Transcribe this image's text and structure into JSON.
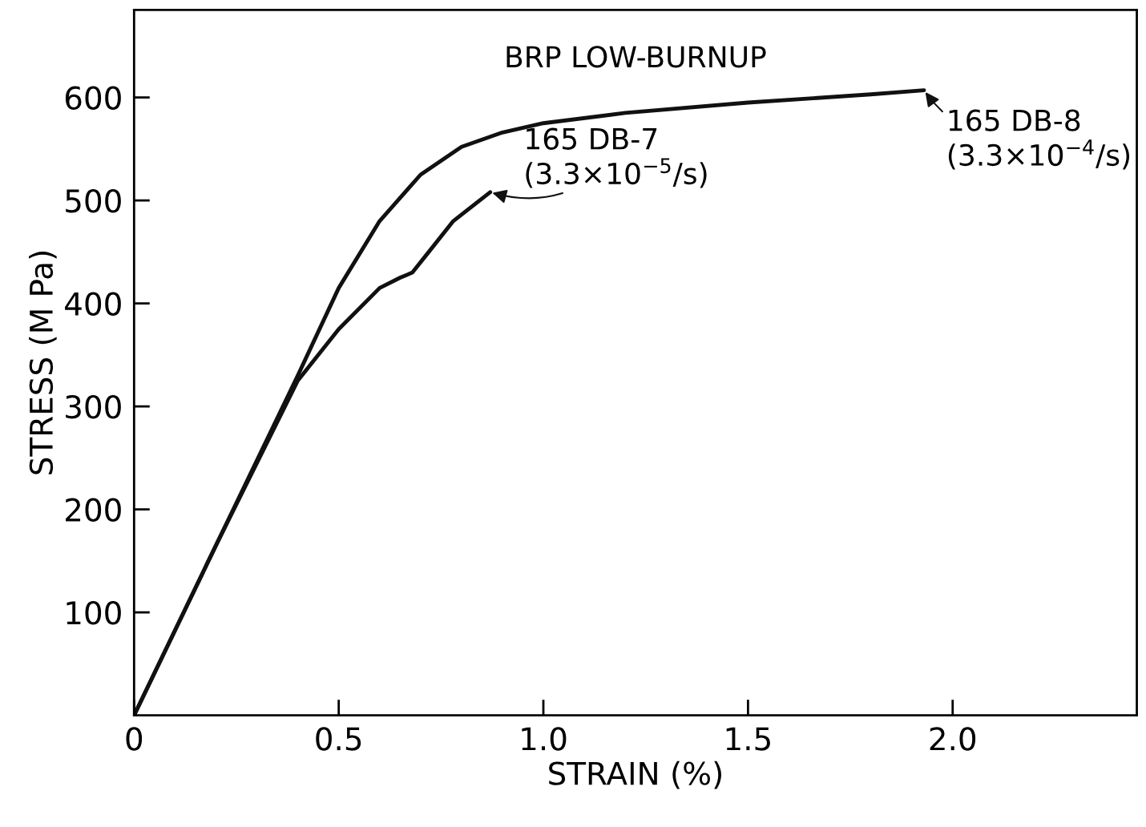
{
  "chart_data": {
    "type": "line",
    "title": "BRP LOW-BURNUP",
    "xlabel": "STRAIN (%)",
    "ylabel": "STRESS (M Pa)",
    "xlim": [
      0,
      2.45
    ],
    "ylim": [
      0,
      685
    ],
    "xticks": [
      0,
      0.5,
      {
        "value": 1.0,
        "label": "1.0"
      },
      1.5,
      {
        "value": 2.0,
        "label": "2.0"
      }
    ],
    "yticks": [
      100,
      200,
      300,
      400,
      500,
      600
    ],
    "grid": false,
    "legend": false,
    "marker": "none",
    "line_style": "solid",
    "series": [
      {
        "color": "#111111",
        "x": [
          0,
          0.2,
          0.4,
          0.5,
          0.6,
          0.7,
          0.8,
          0.9,
          1.0,
          1.2,
          1.5,
          1.8,
          1.93
        ],
        "values": [
          0,
          165,
          330,
          415,
          480,
          525,
          552,
          566,
          575,
          585,
          595,
          603,
          607
        ]
      },
      {
        "color": "#111111",
        "x": [
          0,
          0.2,
          0.4,
          0.5,
          0.6,
          0.65,
          0.68,
          0.72,
          0.78,
          0.87
        ],
        "values": [
          0,
          165,
          325,
          375,
          415,
          425,
          430,
          450,
          480,
          508
        ]
      }
    ],
    "annotations": [
      {
        "text": "165 DB-7\n(3.3×10$^{−5}$/s)",
        "x": 0.87,
        "y": 508
      },
      {
        "text": "165 DB-8\n(3.3×10$^{−4}$/s)",
        "x": 1.93,
        "y": 607
      }
    ]
  }
}
